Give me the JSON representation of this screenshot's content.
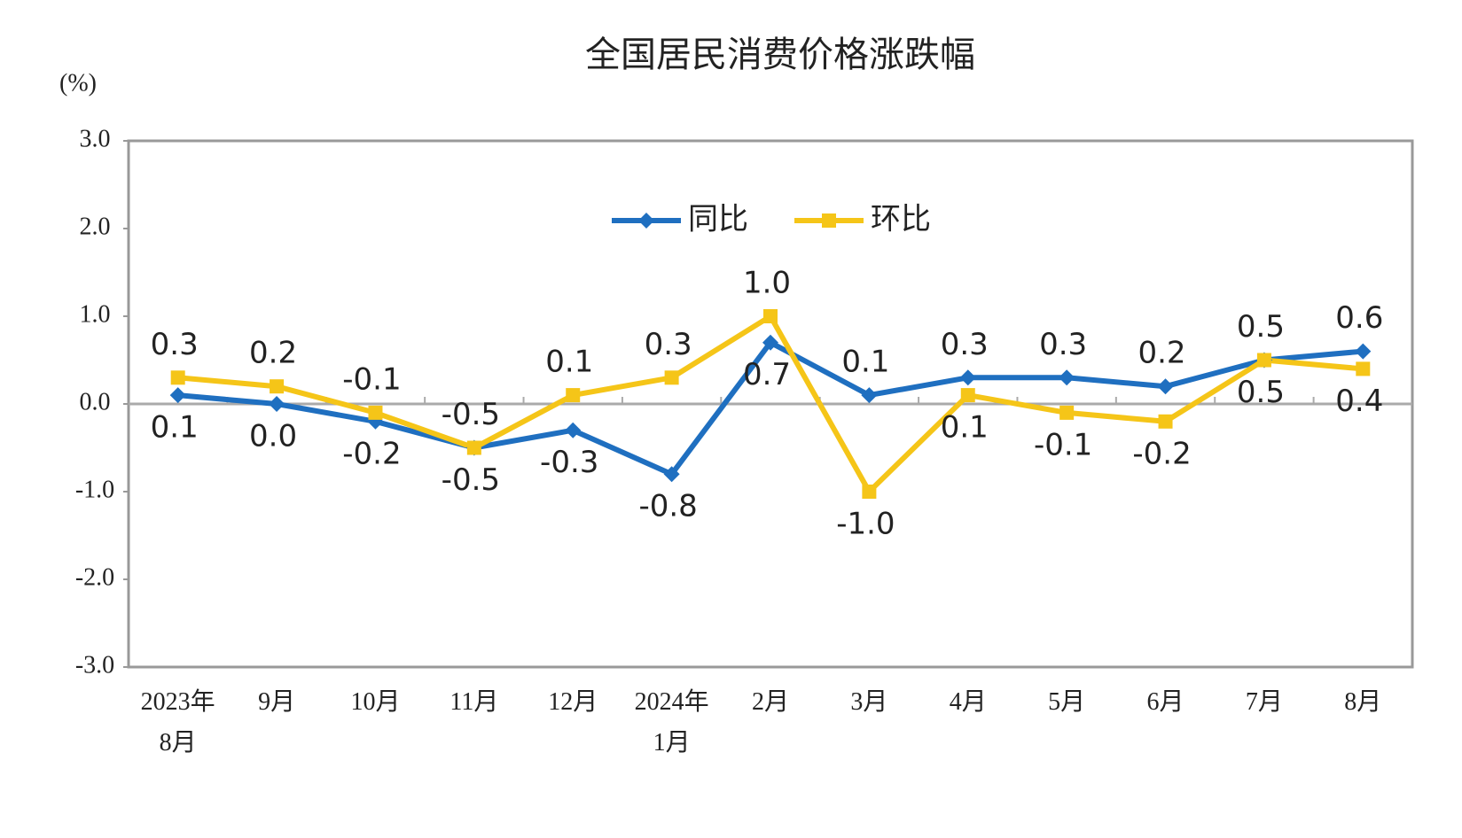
{
  "chart_data": {
    "type": "line",
    "title": "全国居民消费价格涨跌幅",
    "y_label": "(%)",
    "categories": [
      "2023年\n8月",
      "9月",
      "10月",
      "11月",
      "12月",
      "2024年\n1月",
      "2月",
      "3月",
      "4月",
      "5月",
      "6月",
      "7月",
      "8月"
    ],
    "series": [
      {
        "name": "同比",
        "color": "#1f6fc0",
        "marker": "diamond",
        "values": [
          0.1,
          0.0,
          -0.2,
          -0.5,
          -0.3,
          -0.8,
          0.7,
          0.1,
          0.3,
          0.3,
          0.2,
          0.5,
          0.6
        ],
        "value_labels": [
          "0.1",
          "0.0",
          "-0.2",
          "-0.5",
          "-0.3",
          "-0.8",
          "0.7",
          "0.1",
          "0.3",
          "0.3",
          "0.2",
          "0.5",
          "0.6"
        ]
      },
      {
        "name": "环比",
        "color": "#f5c518",
        "marker": "square",
        "values": [
          0.3,
          0.2,
          -0.1,
          -0.5,
          0.1,
          0.3,
          1.0,
          -1.0,
          0.1,
          -0.1,
          -0.2,
          0.5,
          0.4
        ],
        "value_labels": [
          "0.3",
          "0.2",
          "-0.1",
          "-0.5",
          "0.1",
          "0.3",
          "1.0",
          "-1.0",
          "0.1",
          "-0.1",
          "-0.2",
          "0.5",
          "0.4"
        ]
      }
    ],
    "ylim": [
      -3,
      3
    ],
    "yticks": [
      {
        "value": -3,
        "label": "-3.0"
      },
      {
        "value": -2,
        "label": "-2.0"
      },
      {
        "value": -1,
        "label": "-1.0"
      },
      {
        "value": 0,
        "label": "0.0"
      },
      {
        "value": 1,
        "label": "1.0"
      },
      {
        "value": 2,
        "label": "2.0"
      },
      {
        "value": 3,
        "label": "3.0"
      }
    ],
    "grid": false,
    "legend": "top"
  }
}
